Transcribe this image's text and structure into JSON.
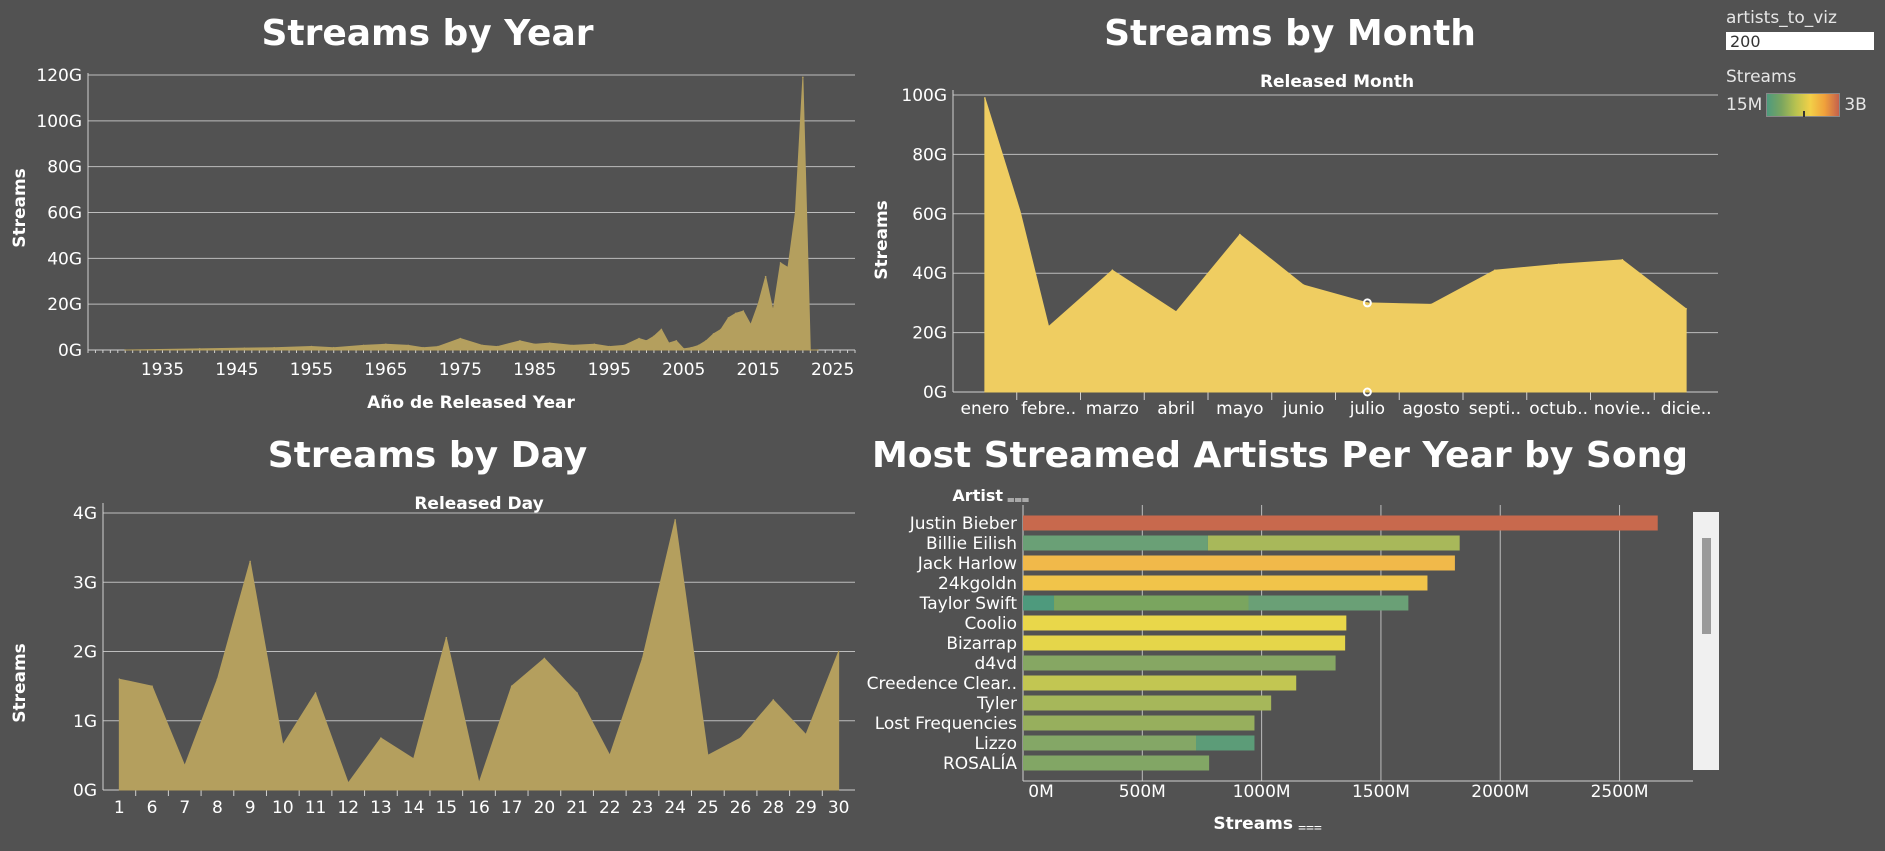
{
  "controls": {
    "param_label": "artists_to_viz",
    "param_value": "200",
    "legend_title": "Streams",
    "legend_min": "15M",
    "legend_max": "3B"
  },
  "chart_data": [
    {
      "id": "year",
      "type": "area",
      "title": "Streams by Year",
      "xlabel": "Año de Released Year",
      "ylabel": "Streams",
      "x_ticks": [
        "1935",
        "1945",
        "1955",
        "1965",
        "1975",
        "1985",
        "1995",
        "2005",
        "2015",
        "2025"
      ],
      "y_ticks": [
        "0G",
        "20G",
        "40G",
        "60G",
        "80G",
        "100G",
        "120G"
      ],
      "xlim": [
        1925,
        2028
      ],
      "ylim": [
        0,
        120
      ],
      "unit": "G",
      "color": "#b49f5e",
      "x": [
        1930,
        1940,
        1946,
        1950,
        1955,
        1958,
        1962,
        1965,
        1968,
        1970,
        1972,
        1975,
        1978,
        1980,
        1983,
        1985,
        1987,
        1990,
        1993,
        1995,
        1997,
        1999,
        2000,
        2001,
        2002,
        2003,
        2004,
        2005,
        2006,
        2007,
        2008,
        2009,
        2010,
        2011,
        2012,
        2013,
        2014,
        2015,
        2016,
        2017,
        2018,
        2019,
        2020,
        2021,
        2022,
        2023
      ],
      "values": [
        0,
        0.5,
        0.8,
        1,
        1.5,
        1,
        2,
        2.5,
        2,
        1,
        1.5,
        5,
        2,
        1.5,
        4,
        2.5,
        3,
        2,
        2.5,
        1.5,
        2,
        5,
        4,
        6,
        9,
        3,
        4,
        0.5,
        1,
        2,
        4,
        7,
        9,
        14,
        16,
        17,
        11,
        20,
        32,
        17,
        38,
        36,
        60,
        119,
        0,
        0
      ],
      "grid": true
    },
    {
      "id": "month",
      "type": "area",
      "title": "Streams by Month",
      "subtitle": "Released Month",
      "ylabel": "Streams",
      "categories": [
        "enero",
        "febre..",
        "marzo",
        "abril",
        "mayo",
        "junio",
        "julio",
        "agosto",
        "septi..",
        "octub..",
        "novie..",
        "dicie.."
      ],
      "y_ticks": [
        "0G",
        "20G",
        "40G",
        "60G",
        "80G",
        "100G"
      ],
      "ylim": [
        0,
        100
      ],
      "unit": "G",
      "color": "#efcd61",
      "values": [
        99,
        22,
        41,
        27,
        53,
        36,
        30,
        29.5,
        41,
        43,
        44.5,
        28
      ],
      "extra": {
        "after_index": 0,
        "value": 61
      },
      "marker_index": 6,
      "grid": true
    },
    {
      "id": "day",
      "type": "area",
      "title": "Streams by Day",
      "subtitle": "Released Day",
      "ylabel": "Streams",
      "categories": [
        "1",
        "6",
        "7",
        "8",
        "9",
        "10",
        "11",
        "12",
        "13",
        "14",
        "15",
        "16",
        "17",
        "20",
        "21",
        "22",
        "23",
        "24",
        "25",
        "26",
        "28",
        "29",
        "30"
      ],
      "y_ticks": [
        "0G",
        "1G",
        "2G",
        "3G",
        "4G"
      ],
      "ylim": [
        0,
        4
      ],
      "unit": "G",
      "color": "#b49f5e",
      "values": [
        1.6,
        1.5,
        0.35,
        1.6,
        3.3,
        0.65,
        1.4,
        0.1,
        0.75,
        0.45,
        2.2,
        0.1,
        1.5,
        1.9,
        1.4,
        0.5,
        1.9,
        3.9,
        0.5,
        0.75,
        1.3,
        0.8,
        2.0
      ],
      "grid": true
    },
    {
      "id": "artists",
      "type": "bar",
      "orientation": "horizontal",
      "stacked": true,
      "title": "Most Streamed Artists Per Year by Song",
      "ylabel": "Artist",
      "xlabel": "Streams",
      "x_ticks": [
        "0M",
        "500M",
        "1000M",
        "1500M",
        "2000M",
        "2500M"
      ],
      "xlim": [
        0,
        2900
      ],
      "unit": "M",
      "categories": [
        "Justin Bieber",
        "Billie Eilish",
        "Jack Harlow",
        "24kgoldn",
        "Taylor Swift",
        "Coolio",
        "Bizarrap",
        "d4vd",
        "Creedence Clear..",
        "Tyler",
        "Lost Frequencies",
        "Lizzo",
        "ROSALÍA"
      ],
      "segments": [
        [
          {
            "value": 2660,
            "color": "#c8694d"
          }
        ],
        [
          {
            "value": 775,
            "color": "#6aa076"
          },
          {
            "value": 1055,
            "color": "#a8b85a"
          }
        ],
        [
          {
            "value": 1810,
            "color": "#f1b94a"
          }
        ],
        [
          {
            "value": 1695,
            "color": "#f1c44a"
          }
        ],
        [
          {
            "value": 130,
            "color": "#4e9a7d"
          },
          {
            "value": 815,
            "color": "#7aa55f"
          },
          {
            "value": 670,
            "color": "#6aa076"
          }
        ],
        [
          {
            "value": 1355,
            "color": "#e9d74a"
          }
        ],
        [
          {
            "value": 1350,
            "color": "#e5d64a"
          }
        ],
        [
          {
            "value": 1310,
            "color": "#86a763"
          }
        ],
        [
          {
            "value": 1145,
            "color": "#c2c652"
          }
        ],
        [
          {
            "value": 1040,
            "color": "#a6b75a"
          }
        ],
        [
          {
            "value": 970,
            "color": "#97af5d"
          }
        ],
        [
          {
            "value": 725,
            "color": "#84a766"
          },
          {
            "value": 245,
            "color": "#5c9c78"
          }
        ],
        [
          {
            "value": 780,
            "color": "#82a665"
          }
        ]
      ],
      "grid": true
    }
  ]
}
